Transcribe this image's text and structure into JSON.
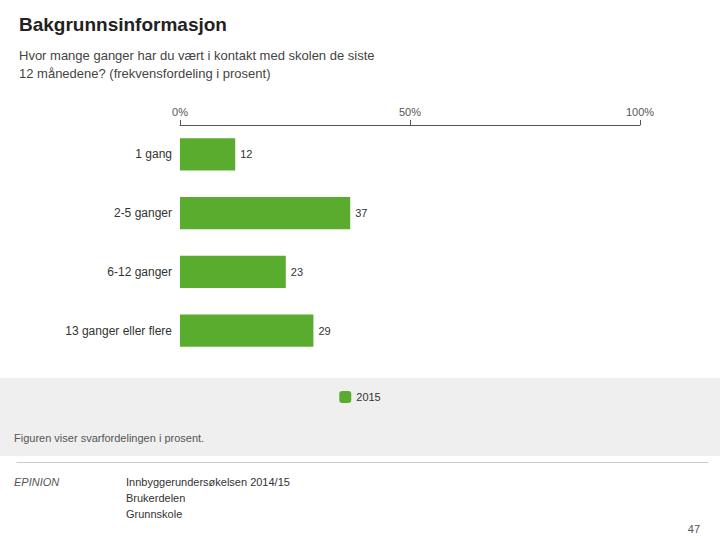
{
  "chart_data": {
    "type": "bar",
    "orientation": "horizontal",
    "title": "Bakgrunnsinformasjon",
    "subtitle": "Hvor mange ganger har du vært i kontakt med skolen de siste\n12 månedene? (frekvensfordeling i prosent)",
    "categories": [
      "1 gang",
      "2-5 ganger",
      "6-12 ganger",
      "13 ganger eller flere"
    ],
    "series": [
      {
        "name": "2015",
        "color": "#5aac2e",
        "values": [
          12,
          37,
          23,
          29
        ]
      }
    ],
    "xlim": [
      0,
      100
    ],
    "xticks": [
      {
        "value": 0,
        "label": "0%"
      },
      {
        "value": 50,
        "label": "50%"
      },
      {
        "value": 100,
        "label": "100%"
      }
    ],
    "grid": false,
    "legend": "bottom",
    "data_labels": true,
    "annotations": [
      "Figuren viser svarfordelingen i prosent.",
      "EPINION",
      "Innbyggerundersøkelsen 2014/15",
      "Brukerdelen",
      "Grunnskole",
      "47"
    ]
  }
}
